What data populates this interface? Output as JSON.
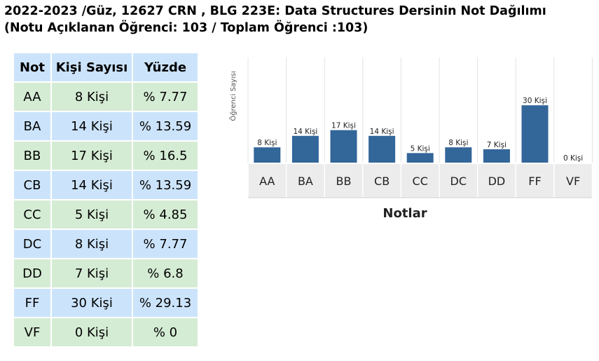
{
  "header": {
    "line1": "2022-2023 /Güz, 12627 CRN , BLG 223E: Data Structures Dersinin Not Dağılımı",
    "line2": "(Notu Açıklanan Öğrenci: 103 / Toplam Öğrenci :103)"
  },
  "table": {
    "headers": [
      "Not",
      "Kişi Sayısı",
      "Yüzde"
    ],
    "rows": [
      [
        "AA",
        "8 Kişi",
        "% 7.77"
      ],
      [
        "BA",
        "14 Kişi",
        "% 13.59"
      ],
      [
        "BB",
        "17 Kişi",
        "% 16.5"
      ],
      [
        "CB",
        "14 Kişi",
        "% 13.59"
      ],
      [
        "CC",
        "5 Kişi",
        "% 4.85"
      ],
      [
        "DC",
        "8 Kişi",
        "% 7.77"
      ],
      [
        "DD",
        "7 Kişi",
        "% 6.8"
      ],
      [
        "FF",
        "30 Kişi",
        "% 29.13"
      ],
      [
        "VF",
        "0 Kişi",
        "% 0"
      ]
    ]
  },
  "colors": {
    "bar": "#336699",
    "header_bg": "#cce4fb",
    "row_green": "#d5ecd4",
    "row_blue": "#cce4fb"
  },
  "chart_data": {
    "type": "bar",
    "categories": [
      "AA",
      "BA",
      "BB",
      "CB",
      "CC",
      "DC",
      "DD",
      "FF",
      "VF"
    ],
    "values": [
      8,
      14,
      17,
      14,
      5,
      8,
      7,
      30,
      0
    ],
    "data_labels": [
      "8 Kişi",
      "14 Kişi",
      "17 Kişi",
      "14 Kişi",
      "5 Kişi",
      "8 Kişi",
      "7 Kişi",
      "30 Kişi",
      "0 Kişi"
    ],
    "title": "",
    "xlabel": "Notlar",
    "ylabel": "Öğrenci Sayısı",
    "ylim": [
      0,
      55
    ],
    "grid": "vertical separators"
  }
}
